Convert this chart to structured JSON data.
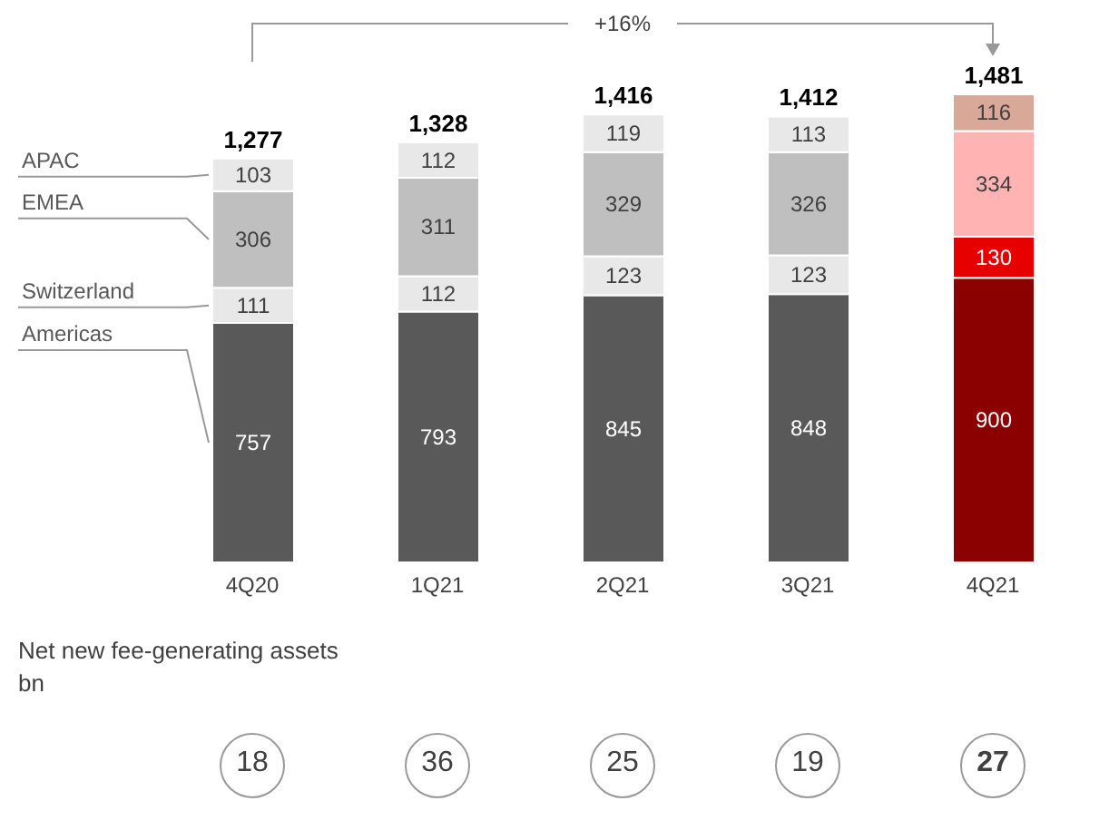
{
  "chart_data": {
    "type": "bar",
    "stacked": true,
    "data_labels": true,
    "categories": [
      "4Q20",
      "1Q21",
      "2Q21",
      "3Q21",
      "4Q21"
    ],
    "series": [
      {
        "name": "Americas",
        "color": "#595959",
        "colors": [
          null,
          null,
          null,
          null,
          "#8b0000"
        ],
        "values": [
          757,
          793,
          845,
          848,
          900
        ]
      },
      {
        "name": "Switzerland",
        "color": "#e8e8e8",
        "colors": [
          null,
          null,
          null,
          null,
          "#e60000"
        ],
        "values": [
          111,
          112,
          123,
          123,
          130
        ]
      },
      {
        "name": "EMEA",
        "color": "#bfbfbf",
        "colors": [
          null,
          null,
          null,
          null,
          "#ffb3b3"
        ],
        "values": [
          306,
          311,
          329,
          326,
          334
        ]
      },
      {
        "name": "APAC",
        "color": "#e8e8e8",
        "colors": [
          null,
          null,
          null,
          null,
          "#d9a898"
        ],
        "values": [
          103,
          112,
          119,
          113,
          116
        ]
      }
    ],
    "totals": [
      "1,277",
      "1,328",
      "1,416",
      "1,412",
      "1,481"
    ],
    "annotations": [
      "+16%",
      "Net new fee-generating assets",
      "bn",
      "18",
      "36",
      "25",
      "19",
      "27"
    ]
  }
}
